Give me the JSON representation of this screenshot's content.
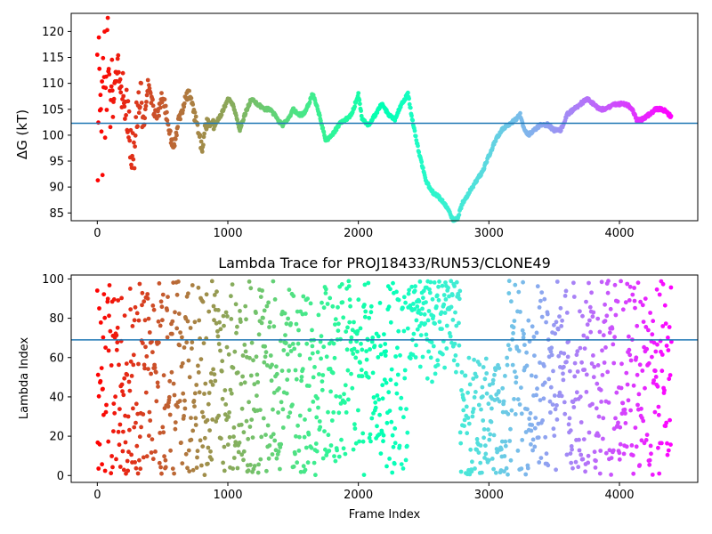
{
  "chart_data": [
    {
      "type": "scatter",
      "title": "",
      "xlabel": "",
      "ylabel": "ΔG (kT)",
      "xlim": [
        -200,
        4600
      ],
      "ylim": [
        83.5,
        123.5
      ],
      "xticks": [
        0,
        1000,
        2000,
        3000,
        4000
      ],
      "yticks": [
        85,
        90,
        95,
        100,
        105,
        110,
        115,
        120
      ],
      "grid": false,
      "colormap": "rainbow",
      "frame_count": 4400,
      "reference_line": {
        "y": 102.3,
        "color": "#1f77b4"
      },
      "series_points": [
        [
          0,
          120
        ],
        [
          5,
          90
        ],
        [
          8,
          100
        ],
        [
          12,
          120
        ],
        [
          18,
          110
        ],
        [
          25,
          105
        ],
        [
          30,
          100
        ],
        [
          35,
          108
        ],
        [
          38,
          122
        ],
        [
          40,
          93
        ],
        [
          45,
          112
        ],
        [
          50,
          98
        ],
        [
          55,
          121
        ],
        [
          60,
          103
        ],
        [
          70,
          108
        ],
        [
          80,
          119
        ],
        [
          90,
          111
        ],
        [
          100,
          104
        ],
        [
          110,
          114
        ],
        [
          120,
          107
        ],
        [
          140,
          110
        ],
        [
          160,
          117
        ],
        [
          180,
          106
        ],
        [
          200,
          109
        ],
        [
          230,
          104
        ],
        [
          260,
          98
        ],
        [
          280,
          96
        ],
        [
          300,
          103
        ],
        [
          330,
          108
        ],
        [
          360,
          102
        ],
        [
          390,
          110
        ],
        [
          420,
          106
        ],
        [
          460,
          103
        ],
        [
          500,
          108
        ],
        [
          530,
          104
        ],
        [
          560,
          100
        ],
        [
          590,
          97
        ],
        [
          620,
          103
        ],
        [
          660,
          106
        ],
        [
          700,
          108
        ],
        [
          740,
          104
        ],
        [
          780,
          101
        ],
        [
          800,
          97
        ],
        [
          830,
          102
        ],
        [
          860,
          103
        ],
        [
          900,
          102
        ],
        [
          950,
          104
        ],
        [
          1000,
          107
        ],
        [
          1040,
          106
        ],
        [
          1090,
          101
        ],
        [
          1130,
          104
        ],
        [
          1180,
          107
        ],
        [
          1230,
          106
        ],
        [
          1280,
          105
        ],
        [
          1330,
          105
        ],
        [
          1380,
          103
        ],
        [
          1420,
          102
        ],
        [
          1460,
          103
        ],
        [
          1500,
          105
        ],
        [
          1540,
          104
        ],
        [
          1580,
          104
        ],
        [
          1620,
          106
        ],
        [
          1650,
          108
        ],
        [
          1700,
          104
        ],
        [
          1750,
          99
        ],
        [
          1800,
          100
        ],
        [
          1850,
          102
        ],
        [
          1900,
          103
        ],
        [
          1950,
          104
        ],
        [
          2000,
          108
        ],
        [
          2030,
          103
        ],
        [
          2080,
          102
        ],
        [
          2130,
          104
        ],
        [
          2180,
          106
        ],
        [
          2230,
          104
        ],
        [
          2280,
          103
        ],
        [
          2330,
          106
        ],
        [
          2380,
          108
        ],
        [
          2420,
          102
        ],
        [
          2470,
          96
        ],
        [
          2520,
          91
        ],
        [
          2570,
          89
        ],
        [
          2620,
          88
        ],
        [
          2680,
          86
        ],
        [
          2730,
          83.5
        ],
        [
          2760,
          84
        ],
        [
          2800,
          87
        ],
        [
          2850,
          89
        ],
        [
          2900,
          91
        ],
        [
          2950,
          93
        ],
        [
          3000,
          96
        ],
        [
          3050,
          99
        ],
        [
          3100,
          101
        ],
        [
          3150,
          102
        ],
        [
          3200,
          103
        ],
        [
          3240,
          104
        ],
        [
          3270,
          101
        ],
        [
          3300,
          100
        ],
        [
          3350,
          101
        ],
        [
          3400,
          102
        ],
        [
          3450,
          102
        ],
        [
          3500,
          101
        ],
        [
          3550,
          101
        ],
        [
          3600,
          104
        ],
        [
          3650,
          105
        ],
        [
          3700,
          106
        ],
        [
          3750,
          107
        ],
        [
          3800,
          106
        ],
        [
          3850,
          105
        ],
        [
          3900,
          105
        ],
        [
          3950,
          106
        ],
        [
          4000,
          106
        ],
        [
          4050,
          106
        ],
        [
          4100,
          105
        ],
        [
          4130,
          103
        ],
        [
          4170,
          103
        ],
        [
          4230,
          104
        ],
        [
          4280,
          105
        ],
        [
          4330,
          105
        ],
        [
          4380,
          104
        ],
        [
          4400,
          103.5
        ]
      ]
    },
    {
      "type": "scatter",
      "title": "Lambda Trace for PROJ18433/RUN53/CLONE49",
      "xlabel": "Frame Index",
      "ylabel": "Lambda Index",
      "xlim": [
        -200,
        4600
      ],
      "ylim": [
        -3.5,
        102
      ],
      "xticks": [
        0,
        1000,
        2000,
        3000,
        4000
      ],
      "yticks": [
        0,
        20,
        40,
        60,
        80,
        100
      ],
      "grid": false,
      "colormap": "rainbow",
      "frame_count": 4400,
      "value_range": [
        0,
        99
      ],
      "reference_line": {
        "y": 69,
        "color": "#1f77b4"
      },
      "segments": [
        {
          "x_start": 0,
          "x_end": 2380,
          "lambda_min": 0,
          "lambda_max": 99,
          "behavior": "random"
        },
        {
          "x_start": 2380,
          "x_end": 2780,
          "lambda_min": 45,
          "lambda_max": 99,
          "behavior": "high"
        },
        {
          "x_start": 2780,
          "x_end": 3150,
          "lambda_min": 0,
          "lambda_max": 60,
          "behavior": "low"
        },
        {
          "x_start": 3150,
          "x_end": 4400,
          "lambda_min": 0,
          "lambda_max": 99,
          "behavior": "random"
        }
      ]
    }
  ]
}
